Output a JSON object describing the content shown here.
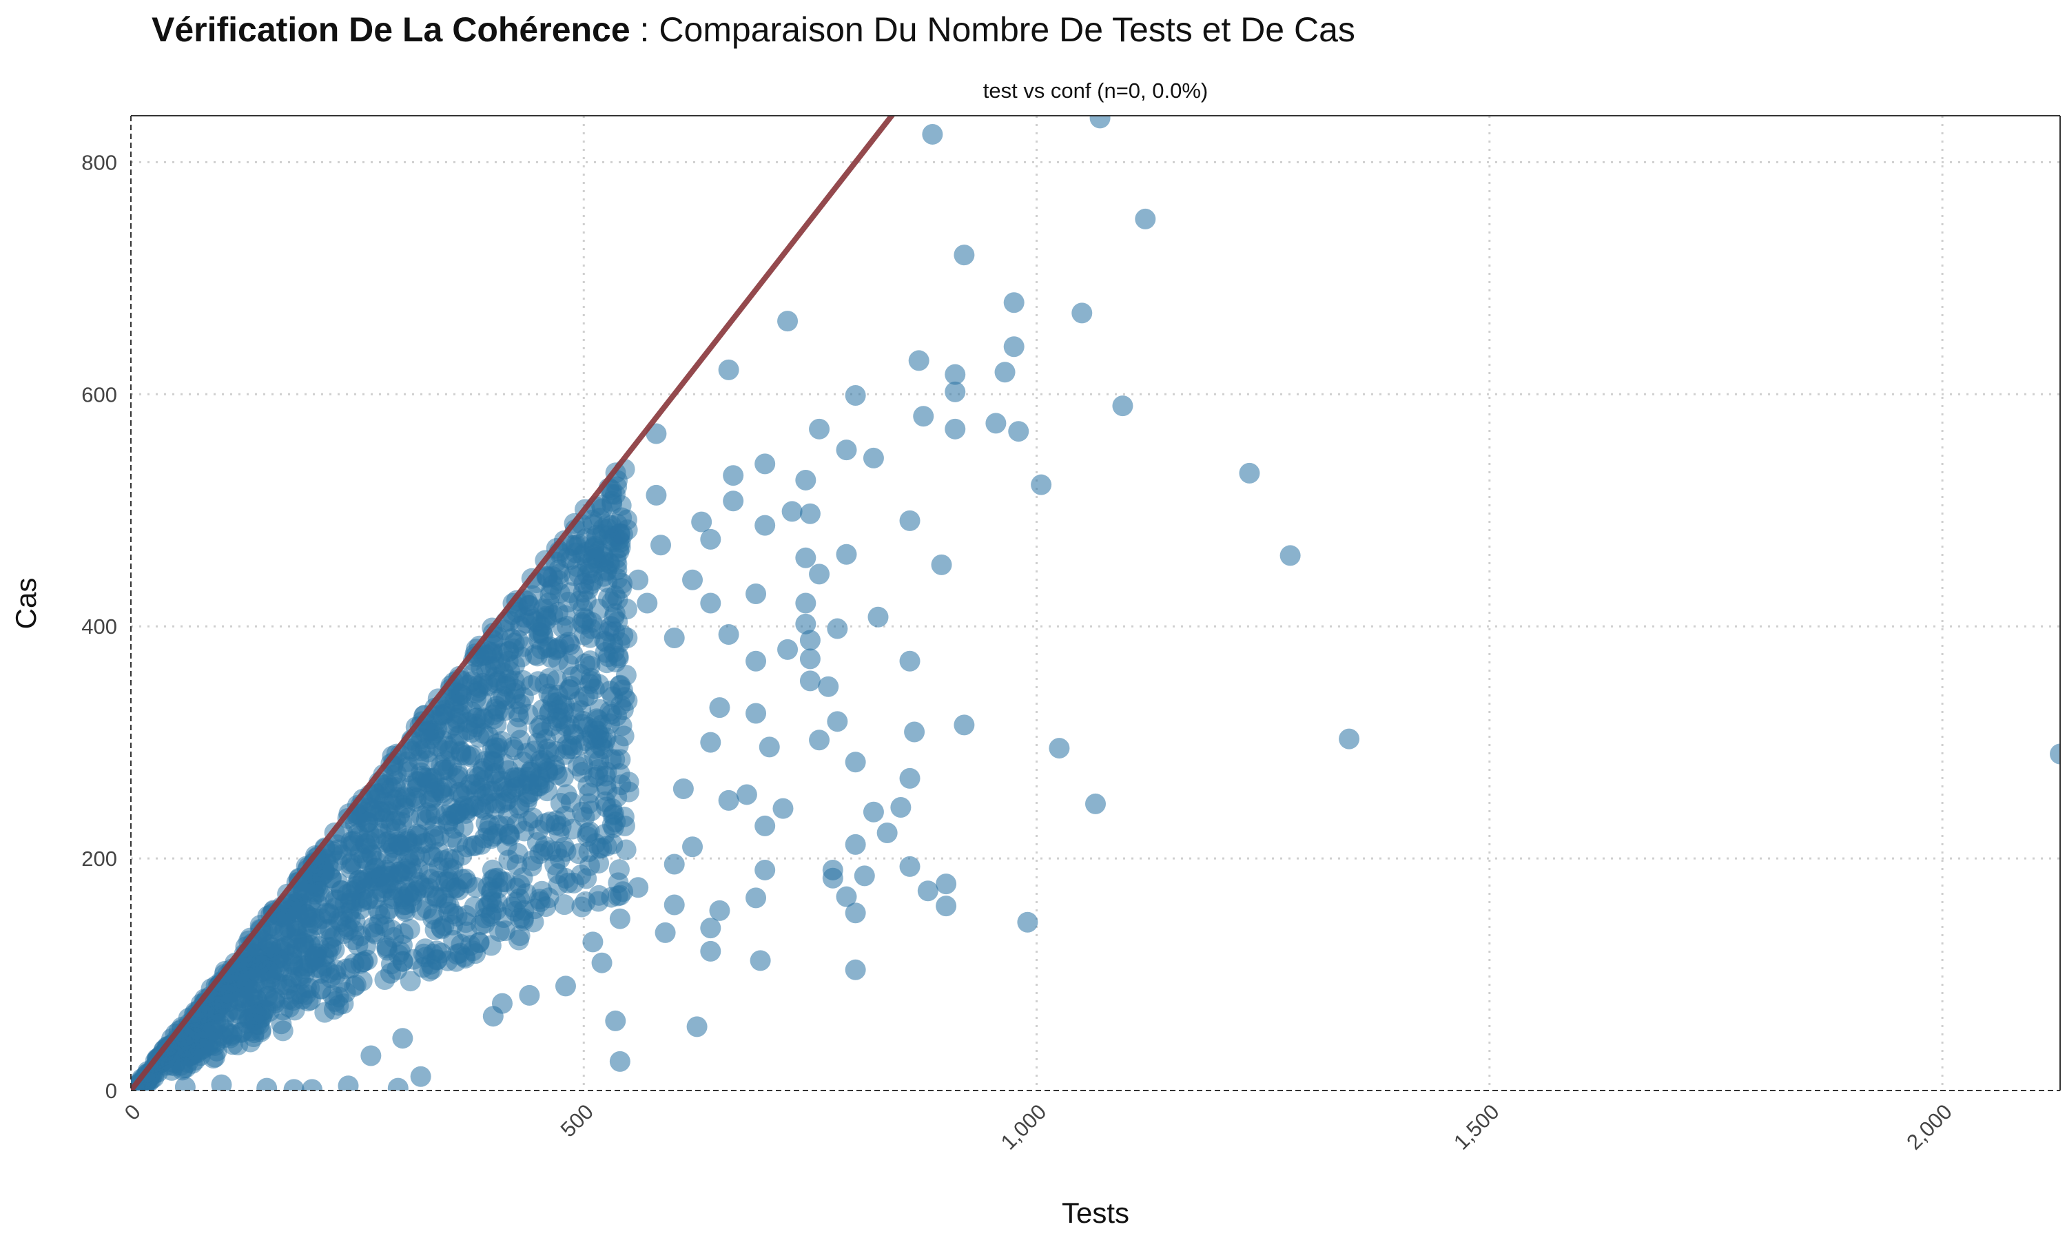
{
  "title": {
    "bold": "Vérification De La Cohérence",
    "rest": " : Comparaison Du Nombre De Tests et De Cas"
  },
  "chart_data": {
    "type": "scatter",
    "subtitle": "test vs conf (n=0, 0.0%)",
    "xlabel": "Tests",
    "ylabel": "Cas",
    "xlim": [
      0,
      2130
    ],
    "ylim": [
      0,
      840
    ],
    "x_ticks": [
      0,
      500,
      1000,
      1500,
      2000
    ],
    "x_tick_labels": [
      "0",
      "500",
      "1,000",
      "1,500",
      "2,000"
    ],
    "y_ticks": [
      0,
      200,
      400,
      600,
      800
    ],
    "y_tick_labels": [
      "0",
      "200",
      "400",
      "600",
      "800"
    ],
    "grid": true,
    "reference_line": {
      "slope": 1,
      "intercept": 0,
      "color": "#8b3a3e"
    },
    "point_color": "#2a73a4",
    "dense_cloud": {
      "x_range": [
        0,
        550
      ],
      "ratio_range": [
        0.3,
        1.0
      ],
      "count": 1600
    },
    "points": [
      [
        885,
        824
      ],
      [
        1070,
        838
      ],
      [
        1120,
        751
      ],
      [
        920,
        720
      ],
      [
        975,
        679
      ],
      [
        1050,
        670
      ],
      [
        725,
        663
      ],
      [
        975,
        641
      ],
      [
        870,
        629
      ],
      [
        910,
        617
      ],
      [
        965,
        619
      ],
      [
        660,
        621
      ],
      [
        800,
        599
      ],
      [
        910,
        602
      ],
      [
        1095,
        590
      ],
      [
        875,
        581
      ],
      [
        955,
        575
      ],
      [
        910,
        570
      ],
      [
        980,
        568
      ],
      [
        760,
        570
      ],
      [
        580,
        566
      ],
      [
        790,
        552
      ],
      [
        820,
        545
      ],
      [
        700,
        540
      ],
      [
        1235,
        532
      ],
      [
        665,
        530
      ],
      [
        745,
        526
      ],
      [
        1005,
        522
      ],
      [
        580,
        513
      ],
      [
        665,
        508
      ],
      [
        750,
        497
      ],
      [
        730,
        499
      ],
      [
        860,
        491
      ],
      [
        700,
        487
      ],
      [
        540,
        480
      ],
      [
        585,
        470
      ],
      [
        790,
        462
      ],
      [
        1280,
        461
      ],
      [
        745,
        459
      ],
      [
        895,
        453
      ],
      [
        760,
        445
      ],
      [
        500,
        437
      ],
      [
        460,
        442
      ],
      [
        690,
        428
      ],
      [
        640,
        420
      ],
      [
        745,
        420
      ],
      [
        440,
        418
      ],
      [
        825,
        408
      ],
      [
        745,
        402
      ],
      [
        780,
        398
      ],
      [
        430,
        400
      ],
      [
        660,
        393
      ],
      [
        530,
        400
      ],
      [
        400,
        388
      ],
      [
        750,
        388
      ],
      [
        485,
        384
      ],
      [
        725,
        380
      ],
      [
        750,
        372
      ],
      [
        860,
        370
      ],
      [
        690,
        370
      ],
      [
        750,
        353
      ],
      [
        770,
        348
      ],
      [
        690,
        325
      ],
      [
        780,
        318
      ],
      [
        920,
        315
      ],
      [
        1345,
        303
      ],
      [
        865,
        309
      ],
      [
        705,
        296
      ],
      [
        760,
        302
      ],
      [
        1025,
        295
      ],
      [
        2130,
        290
      ],
      [
        800,
        283
      ],
      [
        860,
        269
      ],
      [
        1065,
        247
      ],
      [
        720,
        243
      ],
      [
        820,
        240
      ],
      [
        850,
        244
      ],
      [
        700,
        228
      ],
      [
        835,
        222
      ],
      [
        800,
        212
      ],
      [
        860,
        193
      ],
      [
        700,
        190
      ],
      [
        775,
        190
      ],
      [
        900,
        178
      ],
      [
        775,
        183
      ],
      [
        810,
        185
      ],
      [
        880,
        172
      ],
      [
        790,
        167
      ],
      [
        690,
        166
      ],
      [
        800,
        153
      ],
      [
        900,
        159
      ],
      [
        990,
        145
      ],
      [
        650,
        155
      ],
      [
        540,
        148
      ],
      [
        590,
        136
      ],
      [
        510,
        128
      ],
      [
        640,
        120
      ],
      [
        695,
        112
      ],
      [
        800,
        104
      ],
      [
        440,
        82
      ],
      [
        535,
        60
      ],
      [
        625,
        55
      ],
      [
        300,
        45
      ],
      [
        265,
        30
      ],
      [
        540,
        25
      ],
      [
        320,
        12
      ],
      [
        295,
        2
      ],
      [
        240,
        4
      ],
      [
        200,
        1
      ],
      [
        180,
        1
      ],
      [
        150,
        2
      ],
      [
        100,
        5
      ],
      [
        60,
        3
      ],
      [
        400,
        64
      ],
      [
        410,
        75
      ],
      [
        480,
        90
      ],
      [
        520,
        110
      ],
      [
        560,
        175
      ],
      [
        600,
        195
      ],
      [
        620,
        210
      ],
      [
        640,
        140
      ],
      [
        660,
        250
      ],
      [
        600,
        160
      ],
      [
        610,
        260
      ],
      [
        680,
        255
      ],
      [
        640,
        300
      ],
      [
        650,
        330
      ],
      [
        620,
        440
      ],
      [
        640,
        475
      ],
      [
        630,
        490
      ],
      [
        600,
        390
      ],
      [
        570,
        420
      ],
      [
        560,
        440
      ]
    ]
  }
}
